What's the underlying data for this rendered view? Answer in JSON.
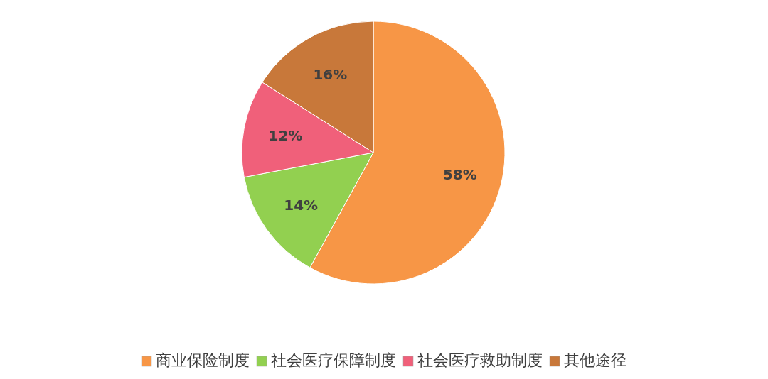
{
  "chart_data": {
    "type": "pie",
    "categories": [
      "商业保险制度",
      "社会医疗保障制度",
      "社会医疗救助制度",
      "其他途径"
    ],
    "values": [
      58,
      14,
      12,
      16
    ],
    "colors": [
      "#f79646",
      "#92d050",
      "#f0607a",
      "#c8783a"
    ],
    "value_labels": [
      "58%",
      "14%",
      "12%",
      "16%"
    ],
    "legend": "bottom"
  }
}
